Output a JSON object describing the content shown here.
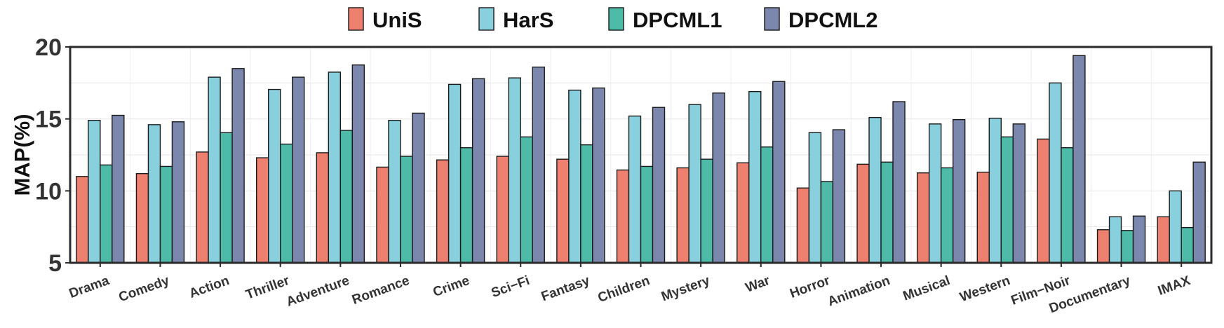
{
  "chart_data": {
    "type": "bar",
    "title": "",
    "xlabel": "",
    "ylabel": "MAP(%)",
    "ylim": [
      5,
      20
    ],
    "yticks": [
      "5",
      "10",
      "15",
      "20"
    ],
    "grid": true,
    "legend_position": "top",
    "categories": [
      "Drama",
      "Comedy",
      "Action",
      "Thriller",
      "Adventure",
      "Romance",
      "Crime",
      "Sci−Fi",
      "Fantasy",
      "Children",
      "Mystery",
      "War",
      "Horror",
      "Animation",
      "Musical",
      "Western",
      "Film−Noir",
      "Documentary",
      "IMAX"
    ],
    "series": [
      {
        "name": "UniS",
        "color": "#EE8070",
        "values": [
          11.0,
          11.2,
          12.7,
          12.3,
          12.65,
          11.65,
          12.15,
          12.4,
          12.2,
          11.45,
          11.6,
          11.95,
          10.2,
          11.85,
          11.25,
          11.3,
          13.6,
          7.3,
          8.2
        ]
      },
      {
        "name": "HarS",
        "color": "#88D0DE",
        "values": [
          14.9,
          14.6,
          17.9,
          17.05,
          18.25,
          14.9,
          17.4,
          17.85,
          17.0,
          15.2,
          16.0,
          16.9,
          14.05,
          15.1,
          14.65,
          15.05,
          17.5,
          8.2,
          10.0
        ]
      },
      {
        "name": "DPCML1",
        "color": "#4DBBA8",
        "values": [
          11.8,
          11.7,
          14.05,
          13.25,
          14.2,
          12.4,
          13.0,
          13.75,
          13.2,
          11.7,
          12.2,
          13.05,
          10.65,
          12.0,
          11.6,
          13.75,
          13.0,
          7.25,
          7.45
        ]
      },
      {
        "name": "DPCML2",
        "color": "#7C87AE",
        "values": [
          15.25,
          14.8,
          18.5,
          17.9,
          18.75,
          15.4,
          17.8,
          18.6,
          17.15,
          15.8,
          16.8,
          17.6,
          14.25,
          16.2,
          14.95,
          14.65,
          19.4,
          8.25,
          12.0
        ]
      }
    ]
  }
}
